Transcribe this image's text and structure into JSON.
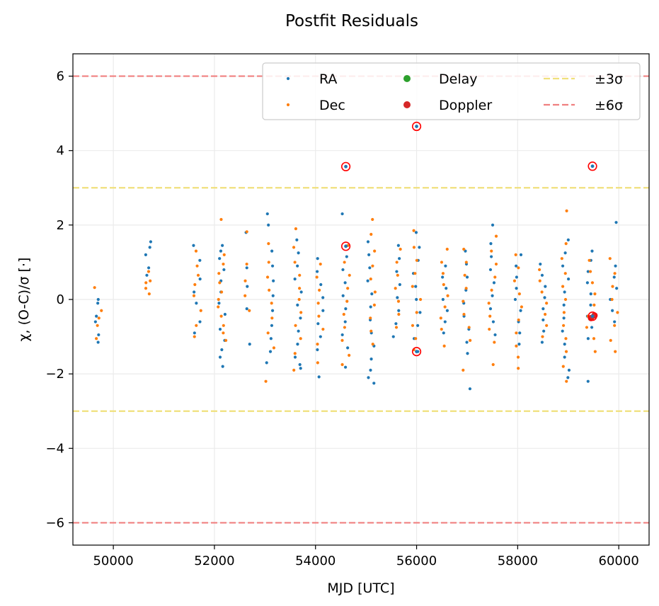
{
  "chart_data": {
    "type": "scatter",
    "title": "Postfit Residuals",
    "xlabel": "MJD [UTC]",
    "ylabel": "χ, (O-C)/σ [·]",
    "xlim": [
      49200,
      60600
    ],
    "ylim": [
      -6.6,
      6.6
    ],
    "grid": true,
    "legend_placement": "top-right",
    "x_ticks": [
      50000,
      52000,
      54000,
      56000,
      58000,
      60000
    ],
    "y_ticks": [
      -6,
      -4,
      -2,
      0,
      2,
      4,
      6
    ],
    "y_tick_labels": [
      "−6",
      "−4",
      "−2",
      "0",
      "2",
      "4",
      "6"
    ],
    "colors": {
      "ra": "#1f77b4",
      "dec": "#ff7f0e",
      "delay": "#2ca02c",
      "doppler": "#d62728",
      "sigma3": "#f0e07c",
      "sigma6": "#f08080",
      "outlier_ring": "#ff0000",
      "grid": "#ebebeb"
    },
    "legend": [
      {
        "key": "ra",
        "label": "RA",
        "marker": "small-dot"
      },
      {
        "key": "dec",
        "label": "Dec",
        "marker": "small-dot"
      },
      {
        "key": "delay",
        "label": "Delay",
        "marker": "dot"
      },
      {
        "key": "doppler",
        "label": "Doppler",
        "marker": "dot"
      },
      {
        "key": "sigma3",
        "label": "±3σ",
        "marker": "dashed-line"
      },
      {
        "key": "sigma6",
        "label": "±6σ",
        "marker": "dashed-line"
      }
    ],
    "reference_lines": [
      {
        "key": "sigma6",
        "y": 6
      },
      {
        "key": "sigma3",
        "y": 3
      },
      {
        "key": "sigma3",
        "y": -3
      },
      {
        "key": "sigma6",
        "y": -6
      }
    ],
    "clusters": [
      {
        "mjd": 49700,
        "ra": [
          -1.15,
          -0.95,
          -0.6,
          -0.45,
          -0.1,
          0.0
        ],
        "dec": [
          0.32,
          -0.3,
          -0.5,
          -0.7,
          -1.05
        ]
      },
      {
        "mjd": 50700,
        "ra": [
          1.55,
          1.4,
          1.2,
          0.85,
          0.65
        ],
        "dec": [
          0.5,
          0.3,
          0.15,
          0.75,
          0.45
        ]
      },
      {
        "mjd": 51650,
        "ra": [
          1.45,
          1.05,
          0.55,
          0.2,
          -0.1,
          -0.6,
          -0.9
        ],
        "dec": [
          1.3,
          0.9,
          0.65,
          0.4,
          0.1,
          -0.3,
          -0.7,
          -1.0
        ]
      },
      {
        "mjd": 52150,
        "ra": [
          1.45,
          1.3,
          1.1,
          0.8,
          0.5,
          0.2,
          -0.1,
          -0.4,
          -0.8,
          -1.1,
          -1.35,
          -1.55,
          -1.8
        ],
        "dec": [
          2.15,
          1.2,
          0.95,
          0.7,
          0.45,
          0.2,
          0.0,
          -0.2,
          -0.45,
          -0.7,
          -0.9,
          -1.1
        ]
      },
      {
        "mjd": 52650,
        "ra": [
          1.8,
          0.85,
          0.35,
          -0.25,
          -1.2
        ],
        "dec": [
          1.82,
          0.95,
          0.5,
          0.1,
          -0.3
        ]
      },
      {
        "mjd": 53100,
        "ra": [
          2.3,
          2.0,
          1.3,
          0.9,
          0.5,
          0.1,
          -0.3,
          -0.7,
          -1.05,
          -1.4,
          -1.7
        ],
        "dec": [
          1.5,
          1.0,
          0.6,
          0.25,
          -0.1,
          -0.5,
          -0.9,
          -1.3,
          -2.2
        ]
      },
      {
        "mjd": 53650,
        "ra": [
          1.6,
          1.25,
          0.9,
          0.55,
          0.2,
          -0.15,
          -0.5,
          -0.85,
          -1.2,
          -1.55,
          -1.75,
          -1.85
        ],
        "dec": [
          1.9,
          1.4,
          1.0,
          0.65,
          0.3,
          0.0,
          -0.35,
          -0.7,
          -1.05,
          -1.45,
          -1.9
        ]
      },
      {
        "mjd": 54100,
        "ra": [
          1.1,
          0.75,
          0.4,
          0.05,
          -0.3,
          -0.65,
          -1.0,
          -1.35,
          -2.08
        ],
        "dec": [
          0.95,
          0.6,
          0.25,
          -0.1,
          -0.45,
          -0.8,
          -1.2,
          -1.7
        ]
      },
      {
        "mjd": 54600,
        "ra": [
          2.3,
          1.15,
          0.8,
          0.45,
          0.1,
          -0.25,
          -0.6,
          -0.95,
          -1.3,
          -1.82
        ],
        "dec": [
          1.45,
          1.0,
          0.65,
          0.3,
          -0.05,
          -0.4,
          -0.75,
          -1.1,
          -1.5,
          -1.75
        ]
      },
      {
        "mjd": 55100,
        "ra": [
          1.55,
          1.2,
          0.85,
          0.5,
          0.15,
          -0.2,
          -0.55,
          -0.9,
          -1.25,
          -1.6,
          -1.9,
          -2.1,
          -2.25
        ],
        "dec": [
          2.15,
          1.75,
          1.3,
          0.9,
          0.55,
          0.2,
          -0.15,
          -0.5,
          -0.85,
          -1.2
        ]
      },
      {
        "mjd": 55600,
        "ra": [
          1.45,
          1.1,
          0.75,
          0.4,
          0.05,
          -0.3,
          -0.65,
          -1.0
        ],
        "dec": [
          1.35,
          1.0,
          0.65,
          0.3,
          -0.05,
          -0.4,
          -0.75
        ]
      },
      {
        "mjd": 56000,
        "ra": [
          1.8,
          1.4,
          1.05,
          0.7,
          0.35,
          0.0,
          -0.35,
          -0.7,
          -1.05,
          -1.4
        ],
        "dec": [
          1.85,
          1.4,
          1.05,
          0.7,
          0.35,
          0.0,
          -0.35,
          -0.7,
          -1.05,
          -1.35
        ]
      },
      {
        "mjd": 56550,
        "ra": [
          0.9,
          0.6,
          0.3,
          0.0,
          -0.3,
          -0.6,
          -0.9
        ],
        "dec": [
          1.35,
          1.0,
          0.7,
          0.4,
          0.1,
          -0.2,
          -0.5,
          -0.8,
          -1.25
        ]
      },
      {
        "mjd": 57000,
        "ra": [
          1.3,
          0.95,
          0.6,
          0.25,
          -0.1,
          -0.45,
          -0.8,
          -1.15,
          -1.45,
          -2.4
        ],
        "dec": [
          1.35,
          1.0,
          0.65,
          0.3,
          -0.05,
          -0.4,
          -0.75,
          -1.1,
          -1.9
        ]
      },
      {
        "mjd": 57500,
        "ra": [
          2.0,
          1.5,
          1.15,
          0.8,
          0.45,
          0.1,
          -0.25,
          -0.6,
          -0.95
        ],
        "dec": [
          1.7,
          1.3,
          0.95,
          0.6,
          0.25,
          -0.1,
          -0.45,
          -0.8,
          -1.15,
          -1.75
        ]
      },
      {
        "mjd": 58000,
        "ra": [
          1.2,
          0.9,
          0.6,
          0.3,
          0.0,
          -0.3,
          -0.6,
          -0.9,
          -1.2
        ],
        "dec": [
          1.2,
          0.85,
          0.5,
          0.15,
          -0.2,
          -0.55,
          -0.9,
          -1.25,
          -1.55,
          -1.85
        ]
      },
      {
        "mjd": 58500,
        "ra": [
          0.95,
          0.65,
          0.35,
          0.05,
          -0.25,
          -0.55,
          -0.85,
          -1.15
        ],
        "dec": [
          0.8,
          0.5,
          0.2,
          -0.1,
          -0.4,
          -0.7,
          -1.0
        ]
      },
      {
        "mjd": 58950,
        "ra": [
          1.6,
          1.25,
          0.9,
          0.55,
          0.2,
          -0.15,
          -0.5,
          -0.85,
          -1.2,
          -1.55,
          -1.9,
          -2.1
        ],
        "dec": [
          2.38,
          1.5,
          1.1,
          0.7,
          0.35,
          0.0,
          -0.35,
          -0.7,
          -1.05,
          -1.4,
          -1.8,
          -2.2
        ]
      },
      {
        "mjd": 59450,
        "ra": [
          1.3,
          1.05,
          0.75,
          0.45,
          0.15,
          -0.15,
          -0.45,
          -0.75,
          -1.05,
          -2.2
        ],
        "dec": [
          1.05,
          0.75,
          0.45,
          0.15,
          -0.15,
          -0.45,
          -0.75,
          -1.05,
          -1.4
        ]
      },
      {
        "mjd": 59900,
        "ra": [
          2.07,
          0.9,
          0.6,
          0.3,
          0.0,
          -0.3,
          -0.6
        ],
        "dec": [
          1.1,
          0.7,
          0.35,
          0.0,
          -0.35,
          -0.7,
          -1.1,
          -1.4
        ]
      }
    ],
    "doppler_points": [
      {
        "x": 59520,
        "y": -0.43
      },
      {
        "x": 59450,
        "y": -0.5
      }
    ],
    "ringed_outliers": [
      {
        "x": 54600,
        "y": 3.57
      },
      {
        "x": 54600,
        "y": 1.43
      },
      {
        "x": 56000,
        "y": 4.65
      },
      {
        "x": 56000,
        "y": -1.4
      },
      {
        "x": 59480,
        "y": 3.58
      },
      {
        "x": 59480,
        "y": -0.45
      }
    ]
  }
}
